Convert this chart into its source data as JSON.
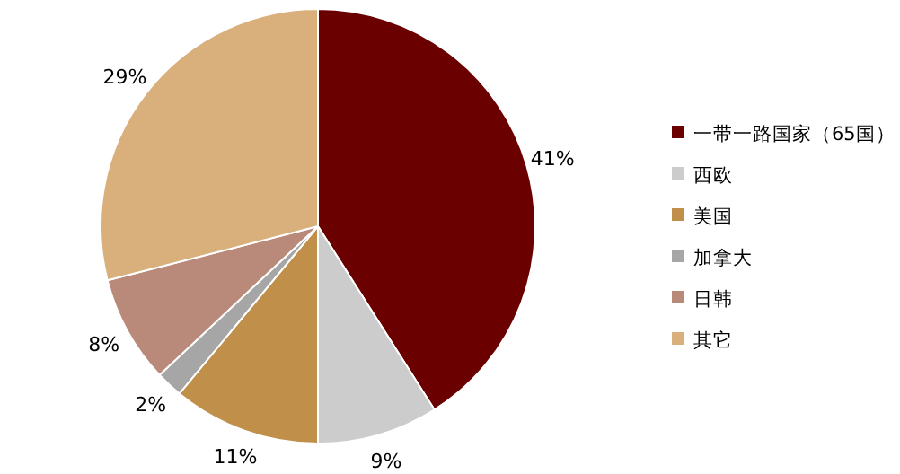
{
  "chart_data": {
    "type": "pie",
    "categories": [
      "一带一路国家（65国）",
      "西欧",
      "美国",
      "加拿大",
      "日韩",
      "其它"
    ],
    "values": [
      41,
      9,
      11,
      2,
      8,
      29
    ],
    "colors": [
      "#6b0000",
      "#cccccc",
      "#c0904b",
      "#a6a6a6",
      "#b98a7a",
      "#d9b07c"
    ],
    "value_labels": [
      "41%",
      "9%",
      "11%",
      "2%",
      "8%",
      "29%"
    ],
    "legend": "right"
  }
}
